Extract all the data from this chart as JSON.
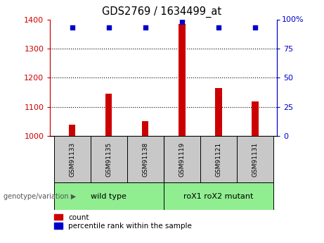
{
  "title": "GDS2769 / 1634499_at",
  "samples": [
    "GSM91133",
    "GSM91135",
    "GSM91138",
    "GSM91119",
    "GSM91121",
    "GSM91131"
  ],
  "count_values": [
    1040,
    1145,
    1050,
    1385,
    1165,
    1120
  ],
  "percentile_values": [
    93,
    93,
    93,
    98,
    93,
    93
  ],
  "ylim_left": [
    1000,
    1400
  ],
  "ylim_right": [
    0,
    100
  ],
  "yticks_left": [
    1000,
    1100,
    1200,
    1300,
    1400
  ],
  "yticks_right": [
    0,
    25,
    50,
    75,
    100
  ],
  "bar_color": "#CC0000",
  "scatter_color": "#0000CC",
  "bar_width": 0.18,
  "background_color": "#ffffff",
  "plot_bg_color": "#ffffff",
  "left_tick_color": "#CC0000",
  "right_tick_color": "#0000CC",
  "sample_box_color": "#C8C8C8",
  "wt_color": "#90EE90",
  "mutant_color": "#90EE90",
  "group_label": "genotype/variation",
  "legend_count": "count",
  "legend_percentile": "percentile rank within the sample",
  "wt_label": "wild type",
  "mutant_label": "roX1 roX2 mutant",
  "right_top_label": "100%"
}
